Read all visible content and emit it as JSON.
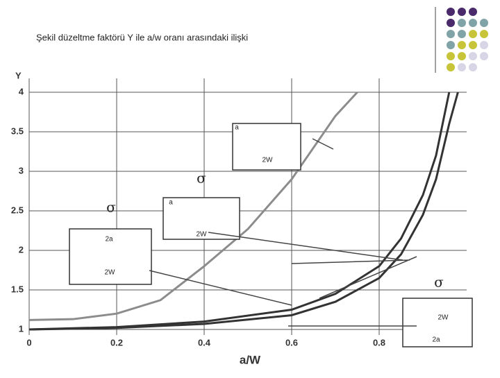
{
  "chart_data": {
    "type": "line",
    "title": "Şekil düzeltme faktörü Y ile a/w oranı arasındaki ilişki",
    "x_label": "a/W",
    "y_label": "Y",
    "xlim": [
      0,
      1
    ],
    "ylim": [
      1,
      4
    ],
    "xticks": [
      0,
      0.2,
      0.4,
      0.6,
      0.8
    ],
    "yticks": [
      1,
      1.5,
      2,
      2.5,
      3,
      3.5,
      4
    ],
    "grid": true,
    "series": [
      {
        "color": "#8c8c8c",
        "x": [
          0,
          0.1,
          0.2,
          0.3,
          0.4,
          0.5,
          0.6,
          0.65,
          0.7,
          0.75
        ],
        "values": [
          1.12,
          1.13,
          1.2,
          1.37,
          1.8,
          2.27,
          2.9,
          3.3,
          3.7,
          4.0
        ]
      },
      {
        "color": "#333333",
        "x": [
          0,
          0.2,
          0.4,
          0.6,
          0.7,
          0.8,
          0.85,
          0.9,
          0.93,
          0.96
        ],
        "values": [
          1.0,
          1.03,
          1.1,
          1.25,
          1.45,
          1.8,
          2.15,
          2.7,
          3.2,
          4.0
        ]
      },
      {
        "color": "#333333",
        "x": [
          0,
          0.2,
          0.4,
          0.6,
          0.7,
          0.8,
          0.85,
          0.9,
          0.93,
          0.96,
          0.98
        ],
        "values": [
          1.0,
          1.02,
          1.07,
          1.18,
          1.35,
          1.65,
          1.95,
          2.45,
          2.9,
          3.6,
          4.0
        ]
      }
    ],
    "annotations": [
      "σ",
      "2a",
      "2W",
      "σ",
      "a",
      "2W",
      "a",
      "2W",
      "σ",
      "2W",
      "2a"
    ]
  }
}
